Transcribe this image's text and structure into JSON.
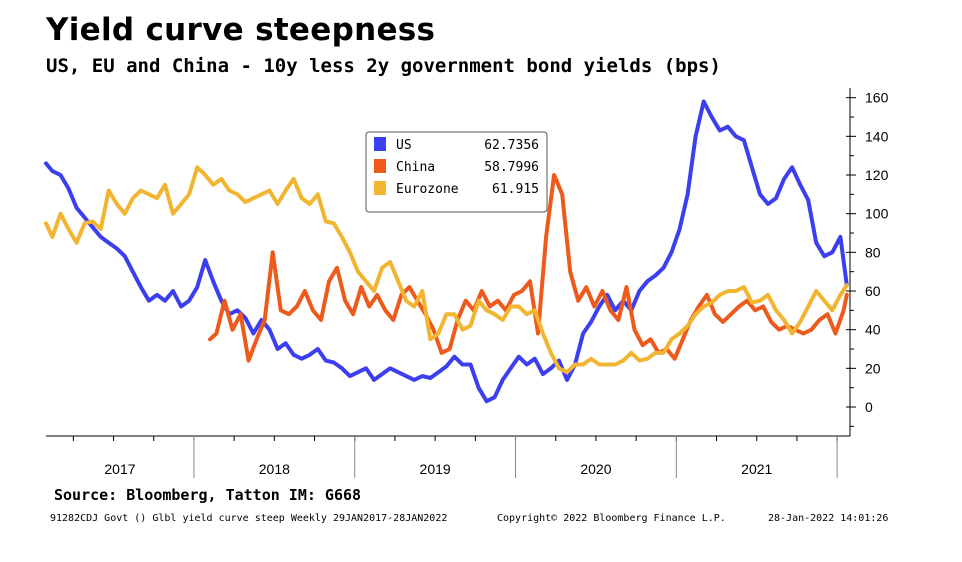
{
  "title": "Yield curve steepness",
  "subtitle": "US, EU and China - 10y less 2y government bond yields (bps)",
  "source": "Source: Bloomberg, Tatton IM: G668",
  "footer": {
    "left": "91282CDJ Govt () Glbl yield curve steep  Weekly 29JAN2017-28JAN2022",
    "center": "Copyright© 2022 Bloomberg Finance L.P.",
    "right": "28-Jan-2022 14:01:26"
  },
  "colors": {
    "US": "#3b3ff0",
    "China": "#ee5a1c",
    "Eurozone": "#f2b531"
  },
  "chart_data": {
    "type": "line",
    "title": "Yield curve steepness",
    "subtitle": "US, EU and China - 10y less 2y government bond yields (bps)",
    "x_range": [
      2017.08,
      2022.08
    ],
    "ylim": [
      -15,
      165
    ],
    "yticks": [
      0,
      20,
      40,
      60,
      80,
      100,
      120,
      140,
      160
    ],
    "year_labels": [
      "2017",
      "2018",
      "2019",
      "2020",
      "2021"
    ],
    "year_bounds": [
      2018.0,
      2019.0,
      2020.0,
      2021.0,
      2022.0
    ],
    "grid": false,
    "legend_position": "top-center",
    "series": [
      {
        "name": "US",
        "last_value": "62.7356",
        "color": "#3b3ff0",
        "x": [
          2017.08,
          2017.12,
          2017.17,
          2017.22,
          2017.27,
          2017.32,
          2017.37,
          2017.42,
          2017.47,
          2017.52,
          2017.57,
          2017.62,
          2017.67,
          2017.72,
          2017.77,
          2017.82,
          2017.87,
          2017.92,
          2017.97,
          2018.02,
          2018.07,
          2018.12,
          2018.17,
          2018.22,
          2018.27,
          2018.32,
          2018.37,
          2018.42,
          2018.47,
          2018.52,
          2018.57,
          2018.62,
          2018.67,
          2018.72,
          2018.77,
          2018.82,
          2018.87,
          2018.92,
          2018.97,
          2019.02,
          2019.07,
          2019.12,
          2019.17,
          2019.22,
          2019.27,
          2019.32,
          2019.37,
          2019.42,
          2019.47,
          2019.52,
          2019.57,
          2019.62,
          2019.67,
          2019.72,
          2019.77,
          2019.82,
          2019.87,
          2019.92,
          2019.97,
          2020.02,
          2020.07,
          2020.12,
          2020.17,
          2020.22,
          2020.27,
          2020.32,
          2020.37,
          2020.42,
          2020.47,
          2020.52,
          2020.57,
          2020.62,
          2020.67,
          2020.72,
          2020.77,
          2020.82,
          2020.87,
          2020.92,
          2020.97,
          2021.02,
          2021.07,
          2021.12,
          2021.17,
          2021.22,
          2021.27,
          2021.32,
          2021.37,
          2021.42,
          2021.47,
          2021.52,
          2021.57,
          2021.62,
          2021.67,
          2021.72,
          2021.77,
          2021.82,
          2021.87,
          2021.92,
          2021.97,
          2022.02,
          2022.06
        ],
        "values": [
          126,
          122,
          120,
          113,
          103,
          98,
          93,
          88,
          85,
          82,
          78,
          70,
          62,
          55,
          58,
          55,
          60,
          52,
          55,
          62,
          76,
          65,
          55,
          48,
          50,
          46,
          38,
          45,
          40,
          30,
          33,
          27,
          25,
          27,
          30,
          24,
          23,
          20,
          16,
          18,
          20,
          14,
          17,
          20,
          18,
          16,
          14,
          16,
          15,
          18,
          21,
          26,
          22,
          22,
          10,
          3,
          5,
          14,
          20,
          26,
          22,
          25,
          17,
          20,
          24,
          14,
          22,
          38,
          44,
          52,
          58,
          50,
          55,
          50,
          60,
          65,
          68,
          72,
          80,
          92,
          110,
          140,
          158,
          150,
          143,
          145,
          140,
          138,
          124,
          110,
          105,
          108,
          118,
          124,
          115,
          107,
          85,
          78,
          80,
          88,
          63
        ]
      },
      {
        "name": "China",
        "last_value": "58.7996",
        "color": "#ee5a1c",
        "x": [
          2018.1,
          2018.14,
          2018.19,
          2018.24,
          2018.29,
          2018.34,
          2018.39,
          2018.44,
          2018.49,
          2018.54,
          2018.59,
          2018.64,
          2018.69,
          2018.74,
          2018.79,
          2018.84,
          2018.89,
          2018.94,
          2018.99,
          2019.04,
          2019.09,
          2019.14,
          2019.19,
          2019.24,
          2019.29,
          2019.34,
          2019.39,
          2019.44,
          2019.49,
          2019.54,
          2019.59,
          2019.64,
          2019.69,
          2019.74,
          2019.79,
          2019.84,
          2019.89,
          2019.94,
          2019.99,
          2020.04,
          2020.09,
          2020.14,
          2020.19,
          2020.24,
          2020.29,
          2020.34,
          2020.39,
          2020.44,
          2020.49,
          2020.54,
          2020.59,
          2020.64,
          2020.69,
          2020.74,
          2020.79,
          2020.84,
          2020.89,
          2020.94,
          2020.99,
          2021.04,
          2021.09,
          2021.14,
          2021.19,
          2021.24,
          2021.29,
          2021.34,
          2021.39,
          2021.44,
          2021.49,
          2021.54,
          2021.59,
          2021.64,
          2021.69,
          2021.74,
          2021.79,
          2021.84,
          2021.89,
          2021.94,
          2021.99,
          2022.04,
          2022.06
        ],
        "values": [
          35,
          38,
          55,
          40,
          48,
          24,
          35,
          45,
          80,
          50,
          48,
          52,
          60,
          50,
          45,
          65,
          72,
          55,
          48,
          62,
          52,
          58,
          50,
          45,
          58,
          62,
          55,
          48,
          40,
          28,
          30,
          45,
          55,
          50,
          60,
          52,
          55,
          50,
          58,
          60,
          65,
          38,
          88,
          120,
          110,
          70,
          55,
          62,
          52,
          60,
          50,
          45,
          62,
          40,
          32,
          35,
          28,
          30,
          25,
          35,
          45,
          52,
          58,
          48,
          44,
          48,
          52,
          55,
          50,
          52,
          44,
          40,
          42,
          40,
          38,
          40,
          45,
          48,
          38,
          50,
          58
        ]
      },
      {
        "name": "Eurozone",
        "last_value": "61.915",
        "color": "#f2b531",
        "x": [
          2017.08,
          2017.12,
          2017.17,
          2017.22,
          2017.27,
          2017.32,
          2017.37,
          2017.42,
          2017.47,
          2017.52,
          2017.57,
          2017.62,
          2017.67,
          2017.72,
          2017.77,
          2017.82,
          2017.87,
          2017.92,
          2017.97,
          2018.02,
          2018.07,
          2018.12,
          2018.17,
          2018.22,
          2018.27,
          2018.32,
          2018.37,
          2018.42,
          2018.47,
          2018.52,
          2018.57,
          2018.62,
          2018.67,
          2018.72,
          2018.77,
          2018.82,
          2018.87,
          2018.92,
          2018.97,
          2019.02,
          2019.07,
          2019.12,
          2019.17,
          2019.22,
          2019.27,
          2019.32,
          2019.37,
          2019.42,
          2019.47,
          2019.52,
          2019.57,
          2019.62,
          2019.67,
          2019.72,
          2019.77,
          2019.82,
          2019.87,
          2019.92,
          2019.97,
          2020.02,
          2020.07,
          2020.12,
          2020.17,
          2020.22,
          2020.27,
          2020.32,
          2020.37,
          2020.42,
          2020.47,
          2020.52,
          2020.57,
          2020.62,
          2020.67,
          2020.72,
          2020.77,
          2020.82,
          2020.87,
          2020.92,
          2020.97,
          2021.02,
          2021.07,
          2021.12,
          2021.17,
          2021.22,
          2021.27,
          2021.32,
          2021.37,
          2021.42,
          2021.47,
          2021.52,
          2021.57,
          2021.62,
          2021.67,
          2021.72,
          2021.77,
          2021.82,
          2021.87,
          2021.92,
          2021.97,
          2022.02,
          2022.06
        ],
        "values": [
          95,
          88,
          100,
          92,
          85,
          95,
          96,
          92,
          112,
          105,
          100,
          108,
          112,
          110,
          108,
          115,
          100,
          105,
          110,
          124,
          120,
          115,
          118,
          112,
          110,
          106,
          108,
          110,
          112,
          105,
          112,
          118,
          108,
          105,
          110,
          96,
          95,
          88,
          80,
          70,
          65,
          60,
          72,
          75,
          65,
          55,
          52,
          60,
          35,
          38,
          48,
          48,
          40,
          42,
          55,
          50,
          48,
          45,
          52,
          52,
          48,
          50,
          38,
          28,
          20,
          18,
          22,
          22,
          25,
          22,
          22,
          22,
          24,
          28,
          24,
          25,
          28,
          28,
          35,
          38,
          42,
          48,
          52,
          54,
          58,
          60,
          60,
          62,
          54,
          55,
          58,
          50,
          45,
          38,
          44,
          52,
          60,
          55,
          50,
          58,
          63
        ]
      }
    ]
  }
}
